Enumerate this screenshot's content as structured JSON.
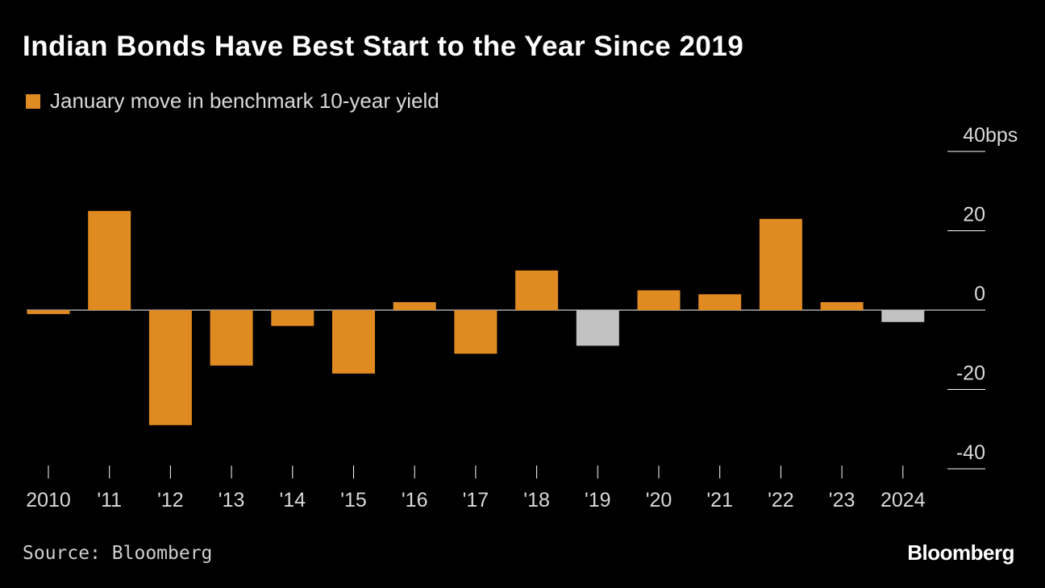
{
  "colors": {
    "background": "#000000",
    "positive": "#e08a22",
    "highlight": "#c2c2c2",
    "axis": "#ffffff"
  },
  "header": {
    "title": "Indian Bonds Have Best Start to the Year Since 2019",
    "legend_label": "January move in benchmark 10-year yield"
  },
  "footer": {
    "source": "Source: Bloomberg",
    "brand": "Bloomberg"
  },
  "chart_data": {
    "type": "bar",
    "title": "Indian Bonds Have Best Start to the Year Since 2019",
    "categories": [
      "2010",
      "'11",
      "'12",
      "'13",
      "'14",
      "'15",
      "'16",
      "'17",
      "'18",
      "'19",
      "'20",
      "'21",
      "'22",
      "'23",
      "2024"
    ],
    "series": [
      {
        "name": "January move in benchmark 10-year yield",
        "values": [
          -1,
          25,
          -29,
          -14,
          -4,
          -16,
          2,
          -11,
          10,
          -9,
          5,
          4,
          23,
          2,
          -3
        ],
        "highlight": [
          false,
          false,
          false,
          false,
          false,
          false,
          false,
          false,
          false,
          true,
          false,
          false,
          false,
          false,
          true
        ]
      }
    ],
    "ylim": [
      -40,
      40
    ],
    "yticks": [
      40,
      20,
      0,
      -20,
      -40
    ],
    "yunit": "bps",
    "ylabel": "",
    "xlabel": ""
  }
}
